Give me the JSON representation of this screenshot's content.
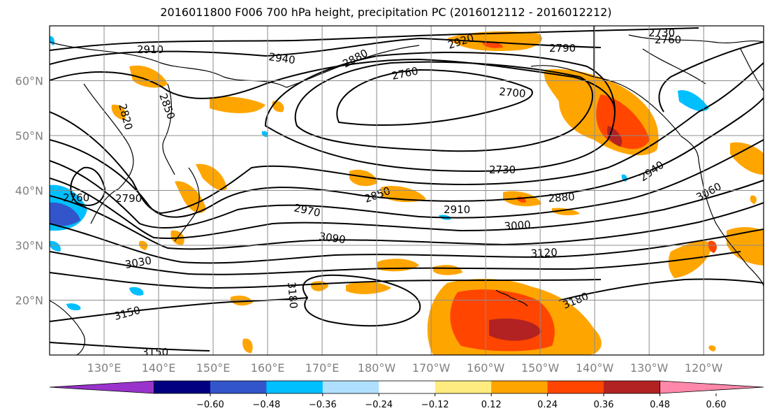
{
  "title": "2016011800 F006 700 hPa height, precipitation PC (2016012112 - 2016012212)",
  "map": {
    "lon_ticks": [
      "130°E",
      "140°E",
      "150°E",
      "160°E",
      "170°E",
      "180°W",
      "170°W",
      "160°W",
      "150°W",
      "140°W",
      "130°W",
      "120°W"
    ],
    "lat_ticks": [
      "60°N",
      "50°N",
      "40°N",
      "30°N",
      "20°N"
    ],
    "grid": true,
    "contour_color": "#000000",
    "contour_labels": [
      "2910",
      "2940",
      "2880",
      "2920",
      "2790",
      "2730",
      "2760",
      "2760",
      "2700",
      "2820",
      "2850",
      "2760",
      "2790",
      "2850",
      "2730",
      "2970",
      "2910",
      "2880",
      "2940",
      "3060",
      "3000",
      "3090",
      "3120",
      "3030",
      "3150",
      "3180",
      "3180",
      "3150"
    ]
  },
  "colorbar": {
    "colors": [
      "#9933cc",
      "#000080",
      "#3355cc",
      "#00bfff",
      "#b0e0ff",
      "#ffffff",
      "#ffec80",
      "#ffa500",
      "#ff4500",
      "#b22222",
      "#ff88aa"
    ],
    "labels": [
      "−0.60",
      "−0.48",
      "−0.36",
      "−0.24",
      "−0.12",
      "0.12",
      "0.24",
      "0.36",
      "0.48",
      "0.60"
    ],
    "extend": "both"
  }
}
